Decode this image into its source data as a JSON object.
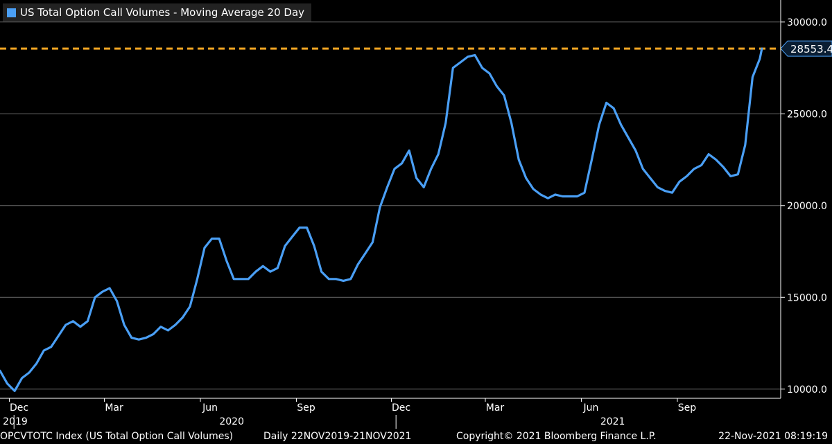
{
  "chart_data": {
    "type": "line",
    "title": "US Total Option Call Volumes - Moving Average 20 Day",
    "series": [
      {
        "name": "US Total Option Call Volumes - Moving Average 20 Day",
        "color": "#4a9ff5",
        "x": [
          "2019-11-22",
          "2019-11-29",
          "2019-12-06",
          "2019-12-13",
          "2019-12-20",
          "2019-12-27",
          "2020-01-03",
          "2020-01-10",
          "2020-01-17",
          "2020-01-24",
          "2020-01-31",
          "2020-02-07",
          "2020-02-14",
          "2020-02-21",
          "2020-02-28",
          "2020-03-06",
          "2020-03-13",
          "2020-03-20",
          "2020-03-27",
          "2020-04-03",
          "2020-04-10",
          "2020-04-17",
          "2020-04-24",
          "2020-05-01",
          "2020-05-08",
          "2020-05-15",
          "2020-05-22",
          "2020-05-29",
          "2020-06-05",
          "2020-06-12",
          "2020-06-19",
          "2020-06-26",
          "2020-07-03",
          "2020-07-10",
          "2020-07-17",
          "2020-07-24",
          "2020-07-31",
          "2020-08-07",
          "2020-08-14",
          "2020-08-21",
          "2020-08-28",
          "2020-09-04",
          "2020-09-11",
          "2020-09-18",
          "2020-09-25",
          "2020-10-02",
          "2020-10-09",
          "2020-10-16",
          "2020-10-23",
          "2020-10-30",
          "2020-11-06",
          "2020-11-13",
          "2020-11-20",
          "2020-11-27",
          "2020-12-04",
          "2020-12-11",
          "2020-12-18",
          "2020-12-25",
          "2021-01-01",
          "2021-01-08",
          "2021-01-15",
          "2021-01-22",
          "2021-01-29",
          "2021-02-05",
          "2021-02-12",
          "2021-02-19",
          "2021-02-26",
          "2021-03-05",
          "2021-03-12",
          "2021-03-19",
          "2021-03-26",
          "2021-04-02",
          "2021-04-09",
          "2021-04-16",
          "2021-04-23",
          "2021-04-30",
          "2021-05-07",
          "2021-05-14",
          "2021-05-21",
          "2021-05-28",
          "2021-06-04",
          "2021-06-11",
          "2021-06-18",
          "2021-06-25",
          "2021-07-02",
          "2021-07-09",
          "2021-07-16",
          "2021-07-23",
          "2021-07-30",
          "2021-08-06",
          "2021-08-13",
          "2021-08-20",
          "2021-08-27",
          "2021-09-03",
          "2021-09-10",
          "2021-09-17",
          "2021-09-24",
          "2021-10-01",
          "2021-10-08",
          "2021-10-15",
          "2021-10-22",
          "2021-10-29",
          "2021-11-05",
          "2021-11-12",
          "2021-11-19",
          "2021-11-21"
        ],
        "y": [
          11000,
          10300,
          9900,
          10600,
          10900,
          11400,
          12100,
          12300,
          12900,
          13500,
          13700,
          13400,
          13700,
          15000,
          15300,
          15500,
          14800,
          13500,
          12800,
          12700,
          12800,
          13000,
          13400,
          13200,
          13500,
          13900,
          14500,
          16000,
          17700,
          18200,
          18200,
          17000,
          16000,
          16000,
          16000,
          16400,
          16700,
          16400,
          16600,
          17800,
          18300,
          18800,
          18800,
          17800,
          16400,
          16000,
          16000,
          15900,
          16000,
          16800,
          17400,
          18000,
          19900,
          21000,
          22000,
          22300,
          23000,
          21500,
          21000,
          22000,
          22800,
          24500,
          27500,
          27800,
          28100,
          28200,
          27500,
          27200,
          26500,
          26000,
          24500,
          22500,
          21500,
          20900,
          20600,
          20400,
          20600,
          20500,
          20500,
          20500,
          20700,
          22500,
          24400,
          25600,
          25300,
          24400,
          23700,
          23000,
          22000,
          21500,
          21000,
          20800,
          20700,
          21300,
          21600,
          22000,
          22200,
          22800,
          22500,
          22100,
          21600,
          21700,
          23300,
          27000,
          28000,
          28553.4
        ]
      }
    ],
    "last_value_label": "28553.4",
    "reference_line": {
      "value": 28553.4,
      "color": "#f5a623",
      "style": "dashed"
    },
    "ylim": [
      9500,
      31200
    ],
    "yticks": [
      {
        "value": 10000,
        "label": "10000.0"
      },
      {
        "value": 15000,
        "label": "15000.0"
      },
      {
        "value": 20000,
        "label": "20000.0"
      },
      {
        "value": 25000,
        "label": "25000.0"
      },
      {
        "value": 30000,
        "label": "30000.0"
      }
    ],
    "xlim": [
      "2019-11-22",
      "2021-12-09"
    ],
    "month_ticks": [
      {
        "date": "2019-12-01",
        "label": "Dec"
      },
      {
        "date": "2020-03-01",
        "label": "Mar"
      },
      {
        "date": "2020-06-01",
        "label": "Jun"
      },
      {
        "date": "2020-09-01",
        "label": "Sep"
      },
      {
        "date": "2020-12-01",
        "label": "Dec"
      },
      {
        "date": "2021-03-01",
        "label": "Mar"
      },
      {
        "date": "2021-06-01",
        "label": "Jun"
      },
      {
        "date": "2021-09-01",
        "label": "Sep"
      }
    ],
    "year_ticks": [
      {
        "date": "2019-12-15",
        "label": "2019"
      },
      {
        "date": "2020-07-01",
        "label": "2020"
      },
      {
        "date": "2021-07-01",
        "label": "2021"
      }
    ],
    "year_separators": [
      "2020-01-01",
      "2021-01-01"
    ],
    "grid": true,
    "y_axis_side": "right",
    "legend_position": "top-left",
    "background": "#000000",
    "grid_color": "#6b6b6b"
  },
  "footer": {
    "ticker": "OPCVTOTC Index (US Total Option Call Volumes)",
    "range": "Daily 22NOV2019-21NOV2021",
    "copyright": "Copyright© 2021 Bloomberg Finance L.P.",
    "timestamp": "22-Nov-2021 08:19:19"
  }
}
